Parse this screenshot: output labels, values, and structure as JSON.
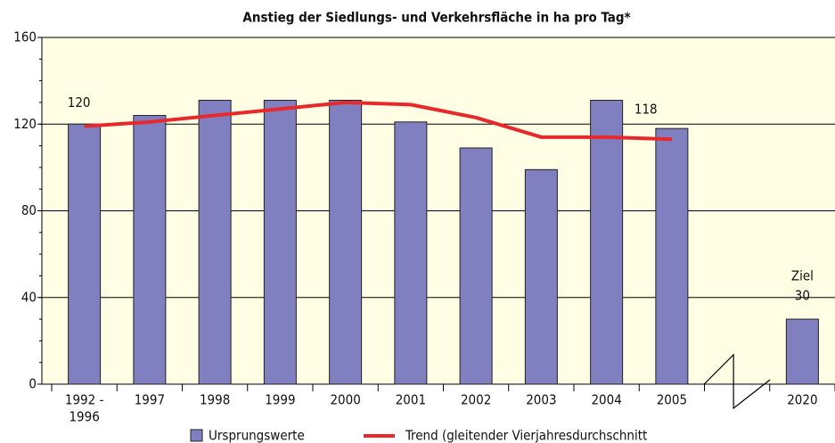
{
  "chart_data": {
    "type": "bar",
    "title": "Anstieg der Siedlungs- und Verkehrsfläche in ha pro Tag*",
    "categories": [
      [
        "1992 -",
        "1996"
      ],
      "1997",
      "1998",
      "1999",
      "2000",
      "2001",
      "2002",
      "2003",
      "2004",
      "2005",
      null,
      "2020"
    ],
    "series": [
      {
        "name": "Ursprungswerte",
        "color": "#8080c0",
        "values": [
          120,
          124,
          131,
          131,
          131,
          121,
          109,
          99,
          131,
          118,
          null,
          30
        ]
      },
      {
        "name": "Trend (gleitender Vierjahresdurchschnitt",
        "color": "#e8282a",
        "type": "line",
        "values": [
          119,
          121,
          124,
          127,
          130,
          129,
          123,
          114,
          114,
          113,
          null,
          null
        ]
      }
    ],
    "data_labels": [
      0,
      9,
      11
    ],
    "annotations": [
      "Ziel"
    ],
    "ylim": [
      0,
      160
    ],
    "yticks": [
      0,
      40,
      80,
      120,
      160
    ],
    "grid": true,
    "background": "#fffde3"
  }
}
